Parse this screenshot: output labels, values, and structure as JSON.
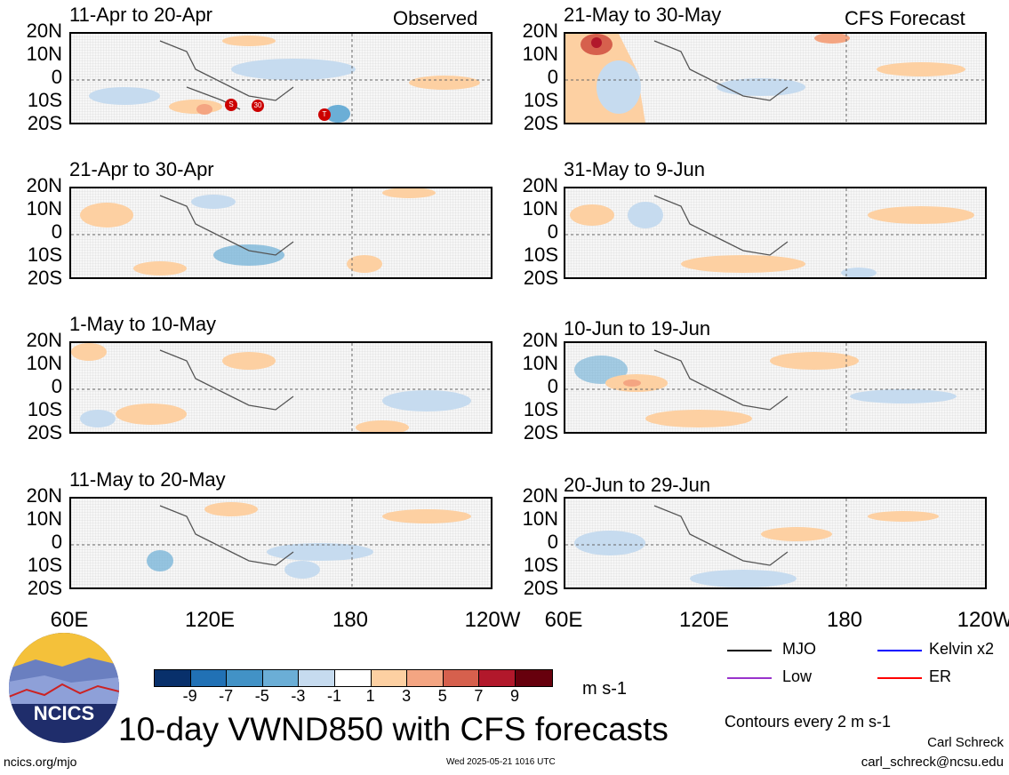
{
  "observed_label": "Observed",
  "forecast_label": "CFS Forecast",
  "panels_left": [
    "11-Apr to 20-Apr",
    "21-Apr to 30-Apr",
    "1-May to 10-May",
    "11-May to 20-May"
  ],
  "panels_right": [
    "21-May to 30-May",
    "31-May to 9-Jun",
    "10-Jun to 19-Jun",
    "20-Jun to 29-Jun"
  ],
  "lat_labels": [
    "20N",
    "10N",
    "0",
    "10S",
    "20S"
  ],
  "lon_labels": [
    "60E",
    "120E",
    "180",
    "120W"
  ],
  "storm_markers": [
    "S",
    "30",
    "T"
  ],
  "colorbar": {
    "ticks": [
      "-9",
      "-7",
      "-5",
      "-3",
      "-1",
      "1",
      "3",
      "5",
      "7",
      "9"
    ],
    "colors": [
      "#08306b",
      "#2171b5",
      "#4292c6",
      "#6baed6",
      "#c6dbef",
      "#ffffff",
      "#fdd0a2",
      "#f4a582",
      "#d6604d",
      "#b2182b",
      "#67000d"
    ],
    "units": "m s-1"
  },
  "legend": [
    {
      "label": "MJO",
      "color": "#000000"
    },
    {
      "label": "Kelvin x2",
      "color": "#0000ff"
    },
    {
      "label": "Low",
      "color": "#9933cc"
    },
    {
      "label": "ER",
      "color": "#ff0000"
    }
  ],
  "main_title": "10-day VWND850 with CFS forecasts",
  "contours_note": "Contours every 2 m s-1",
  "author": "Carl Schreck",
  "email": "carl_schreck@ncsu.edu",
  "site": "ncics.org/mjo",
  "timestamp": "Wed 2025-05-21 1016 UTC",
  "logo_text": "NCICS"
}
